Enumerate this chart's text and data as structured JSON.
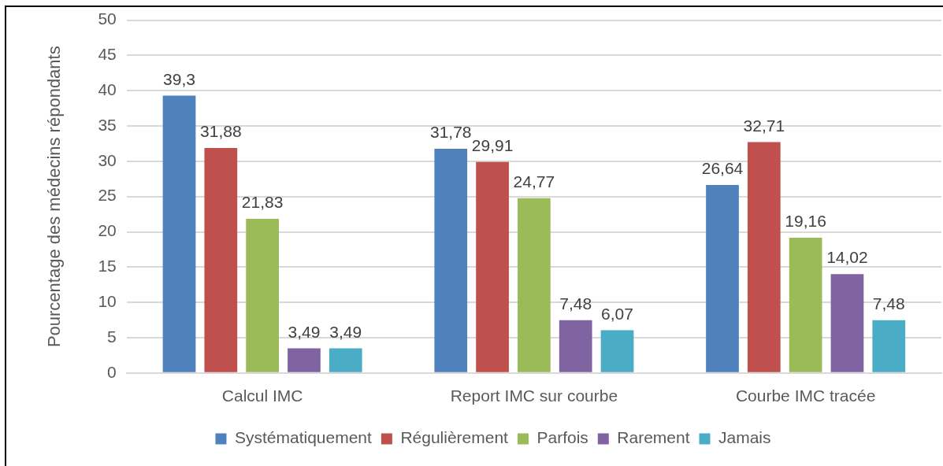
{
  "chart_data": {
    "type": "bar",
    "ylabel": "Pourcentage des médecins répondants",
    "categories": [
      "Calcul IMC",
      "Report IMC sur courbe",
      "Courbe IMC tracée"
    ],
    "series": [
      {
        "name": "Systématiquement",
        "color": "#4f81bd",
        "values": [
          39.3,
          31.78,
          26.64
        ],
        "value_labels": [
          "39,3",
          "31,78",
          "26,64"
        ]
      },
      {
        "name": "Régulièrement",
        "color": "#c0504d",
        "values": [
          31.88,
          29.91,
          32.71
        ],
        "value_labels": [
          "31,88",
          "29,91",
          "32,71"
        ]
      },
      {
        "name": "Parfois",
        "color": "#9bbb59",
        "values": [
          21.83,
          24.77,
          19.16
        ],
        "value_labels": [
          "21,83",
          "24,77",
          "19,16"
        ]
      },
      {
        "name": "Rarement",
        "color": "#8064a2",
        "values": [
          3.49,
          7.48,
          14.02
        ],
        "value_labels": [
          "3,49",
          "7,48",
          "14,02"
        ]
      },
      {
        "name": "Jamais",
        "color": "#4bacc6",
        "values": [
          3.49,
          6.07,
          7.48
        ],
        "value_labels": [
          "3,49",
          "6,07",
          "7,48"
        ]
      }
    ],
    "ylim": [
      0,
      50
    ],
    "yticks": [
      0,
      5,
      10,
      15,
      20,
      25,
      30,
      35,
      40,
      45,
      50
    ],
    "grid": "y",
    "legend": "bottom"
  }
}
